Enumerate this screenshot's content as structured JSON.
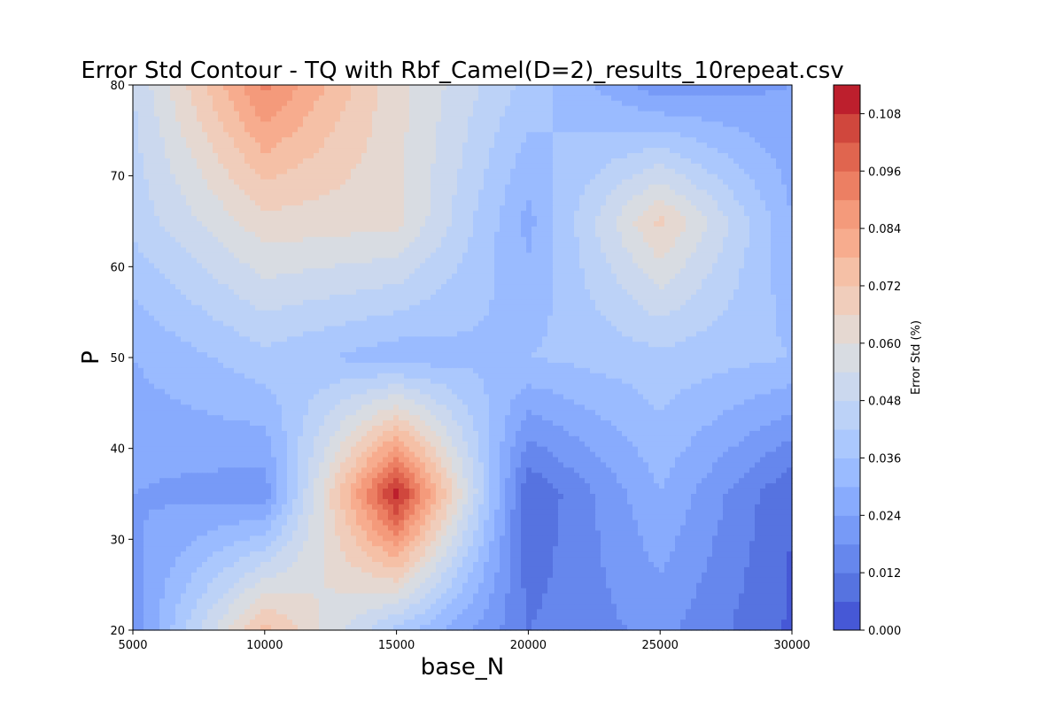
{
  "chart_data": {
    "type": "contour",
    "title": "Error Std Contour - TQ with Rbf_Camel(D=2)_results_10repeat.csv",
    "xlabel": "base_N",
    "ylabel": "P",
    "colorbar_label": "Error Std (%)",
    "x": [
      5000,
      10000,
      15000,
      20000,
      25000,
      30000
    ],
    "y": [
      20,
      35,
      50,
      65,
      80
    ],
    "z": [
      [
        0.02,
        0.075,
        0.04,
        0.012,
        0.02,
        0.005
      ],
      [
        0.024,
        0.02,
        0.112,
        0.006,
        0.03,
        0.006
      ],
      [
        0.03,
        0.04,
        0.032,
        0.036,
        0.04,
        0.036
      ],
      [
        0.044,
        0.064,
        0.062,
        0.028,
        0.068,
        0.03
      ],
      [
        0.048,
        0.092,
        0.062,
        0.04,
        0.02,
        0.024
      ]
    ],
    "xlim": [
      5000,
      30000
    ],
    "ylim": [
      20,
      80
    ],
    "x_ticks": [
      5000,
      10000,
      15000,
      20000,
      25000,
      30000
    ],
    "y_ticks": [
      20,
      30,
      40,
      50,
      60,
      70,
      80
    ],
    "colorbar_range": [
      0,
      0.114
    ],
    "colorbar_ticks": [
      "0.000",
      "0.012",
      "0.024",
      "0.036",
      "0.048",
      "0.060",
      "0.072",
      "0.084",
      "0.096",
      "0.108"
    ],
    "colormap": "coolwarm",
    "levels": 19,
    "colors": [
      "#4658d6",
      "#5673e0",
      "#6687ed",
      "#779af7",
      "#88abfd",
      "#9abbff",
      "#abc8fd",
      "#bcd2f7",
      "#cbd8ee",
      "#d8dce2",
      "#e5d8d1",
      "#f0cdbb",
      "#f5c0a6",
      "#f7ac8e",
      "#f49a7b",
      "#ec7f63",
      "#e0654f",
      "#d0473d",
      "#bd1f2d"
    ]
  }
}
